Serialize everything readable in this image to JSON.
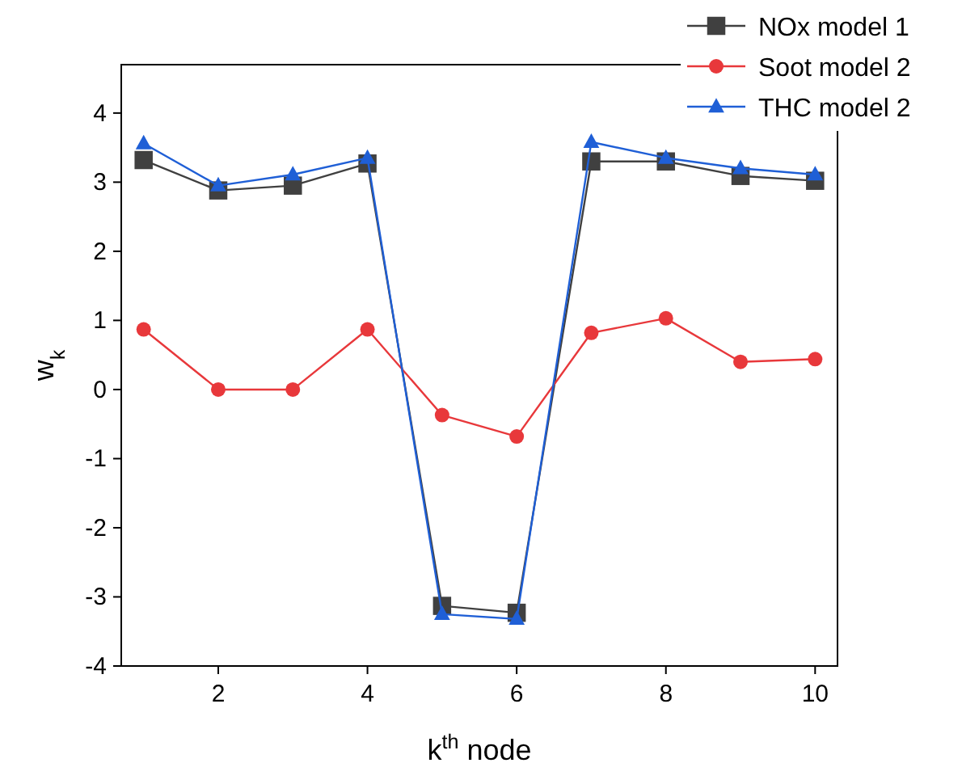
{
  "chart_data": {
    "type": "line",
    "xlabel": "k$^{th}$ node",
    "ylabel": "w$_{k}$",
    "x": [
      1,
      2,
      3,
      4,
      5,
      6,
      7,
      8,
      9,
      10
    ],
    "xlim": [
      0.7,
      10.3
    ],
    "xticks": [
      2,
      4,
      6,
      8,
      10
    ],
    "ylim": [
      -4,
      4.7
    ],
    "yticks": [
      -4,
      -3,
      -2,
      -1,
      0,
      1,
      2,
      3,
      4
    ],
    "grid": false,
    "legend": "top right",
    "line_style": "solid",
    "series": [
      {
        "name": "NOx model 1",
        "color": "#404040",
        "marker": "square",
        "values": [
          3.32,
          2.88,
          2.95,
          3.27,
          -3.13,
          -3.23,
          3.3,
          3.3,
          3.09,
          3.02
        ]
      },
      {
        "name": "Soot model 2",
        "color": "#e8383b",
        "marker": "circle",
        "values": [
          0.87,
          0,
          0,
          0.87,
          -0.37,
          -0.68,
          0.82,
          1.03,
          0.4,
          0.44
        ]
      },
      {
        "name": "THC model 2",
        "color": "#1f5fd6",
        "marker": "triangle",
        "values": [
          3.56,
          2.95,
          3.11,
          3.35,
          -3.25,
          -3.32,
          3.58,
          3.35,
          3.2,
          3.11
        ]
      }
    ]
  }
}
